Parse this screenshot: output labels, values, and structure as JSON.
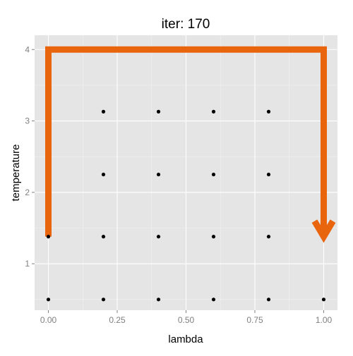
{
  "chart_data": {
    "type": "scatter",
    "title": "iter: 170",
    "xlabel": "lambda",
    "ylabel": "temperature",
    "xlim": [
      -0.05,
      1.05
    ],
    "ylim": [
      0.35,
      4.2
    ],
    "x_ticks": [
      0,
      0.25,
      0.5,
      0.75,
      1
    ],
    "x_tick_labels": [
      "0.00",
      "0.25",
      "0.50",
      "0.75",
      "1.00"
    ],
    "y_ticks": [
      1,
      2,
      3,
      4
    ],
    "y_tick_labels": [
      "1",
      "2",
      "3",
      "4"
    ],
    "grid": true,
    "points": [
      {
        "x": 0.0,
        "y": 0.5
      },
      {
        "x": 0.2,
        "y": 0.5
      },
      {
        "x": 0.4,
        "y": 0.5
      },
      {
        "x": 0.6,
        "y": 0.5
      },
      {
        "x": 0.8,
        "y": 0.5
      },
      {
        "x": 1.0,
        "y": 0.5
      },
      {
        "x": 0.0,
        "y": 1.38
      },
      {
        "x": 0.2,
        "y": 1.38
      },
      {
        "x": 0.4,
        "y": 1.38
      },
      {
        "x": 0.6,
        "y": 1.38
      },
      {
        "x": 0.8,
        "y": 1.38
      },
      {
        "x": 0.2,
        "y": 2.25
      },
      {
        "x": 0.4,
        "y": 2.25
      },
      {
        "x": 0.6,
        "y": 2.25
      },
      {
        "x": 0.8,
        "y": 2.25
      },
      {
        "x": 0.2,
        "y": 3.13
      },
      {
        "x": 0.4,
        "y": 3.13
      },
      {
        "x": 0.6,
        "y": 3.13
      },
      {
        "x": 0.8,
        "y": 3.13
      }
    ],
    "path": {
      "points": [
        {
          "x": 0.0,
          "y": 1.38
        },
        {
          "x": 0.0,
          "y": 4.0
        },
        {
          "x": 1.0,
          "y": 4.0
        },
        {
          "x": 1.0,
          "y": 1.38
        }
      ],
      "arrow_at_end": true
    },
    "colors": {
      "panel_background": "#e5e5e5",
      "grid_major": "#ffffff",
      "grid_minor": "#f2f2f2",
      "point": "#000000",
      "path": "#e8640d",
      "tick_label": "#7f7f7f"
    }
  }
}
